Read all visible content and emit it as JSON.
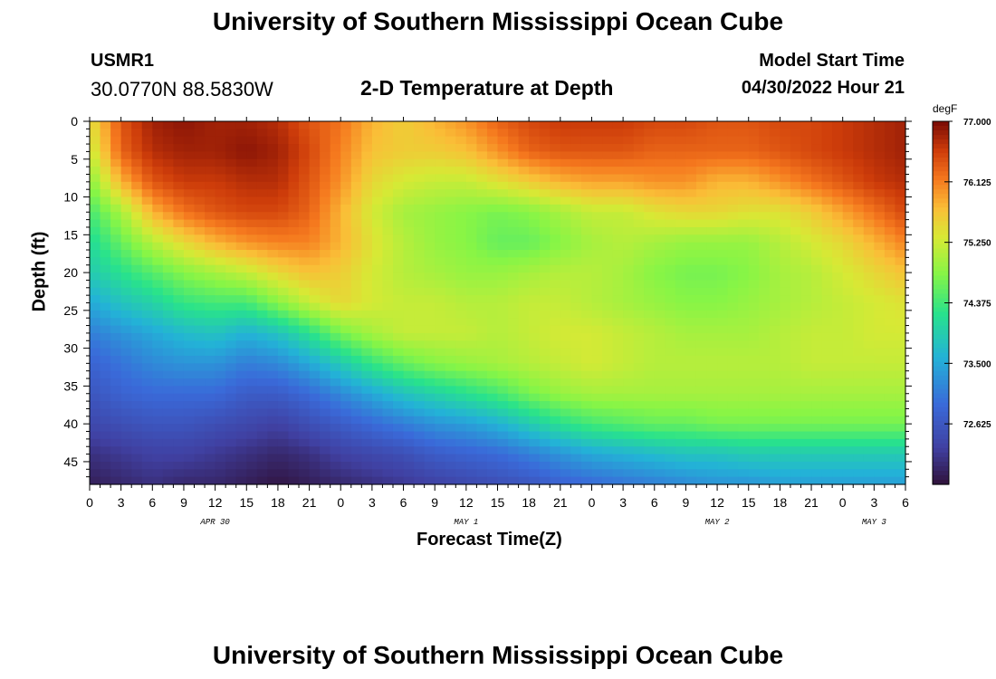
{
  "page": {
    "title": "University of Southern Mississippi Ocean Cube",
    "title_repeat": "University of Southern Mississippi Ocean Cube",
    "station_id": "USMR1",
    "station_coords": "30.0770N  88.5830W",
    "subtitle": "2-D Temperature at Depth",
    "model_start_label": "Model Start Time",
    "model_start_value": "04/30/2022 Hour 21"
  },
  "chart_data": {
    "type": "heatmap",
    "title": "2-D Temperature at Depth",
    "xlabel": "Forecast Time(Z)",
    "ylabel": "Depth (ft)",
    "colorbar_unit": "degF",
    "colorbar_ticks": [
      "77.000",
      "76.125",
      "75.250",
      "74.375",
      "73.500",
      "72.625"
    ],
    "colorbar_range": [
      71.75,
      77.0
    ],
    "x_range_hours": [
      0,
      78
    ],
    "x_tick_labels": [
      "0",
      "3",
      "6",
      "9",
      "12",
      "15",
      "18",
      "21",
      "0",
      "3",
      "6",
      "9",
      "12",
      "15",
      "18",
      "21",
      "0",
      "3",
      "6",
      "9",
      "12",
      "15",
      "18",
      "21",
      "0",
      "3",
      "6"
    ],
    "x_tick_step_hours": 3,
    "date_labels": [
      {
        "label": "APR 30",
        "hour": 12
      },
      {
        "label": "MAY 1",
        "hour": 36
      },
      {
        "label": "MAY 2",
        "hour": 60
      },
      {
        "label": "MAY 3",
        "hour": 75
      }
    ],
    "y_range_ft": [
      0,
      48
    ],
    "y_tick_labels": [
      "0",
      "5",
      "10",
      "15",
      "20",
      "25",
      "30",
      "35",
      "40",
      "45"
    ],
    "y_ticks_ft": [
      0,
      5,
      10,
      15,
      20,
      25,
      30,
      35,
      40,
      45
    ],
    "grid_hours": [
      0,
      3,
      6,
      9,
      12,
      15,
      18,
      21,
      24,
      27,
      30,
      33,
      36,
      39,
      42,
      45,
      48,
      51,
      54,
      57,
      60,
      63,
      66,
      69,
      72,
      75,
      78
    ],
    "grid_depths_ft": [
      0,
      4,
      8,
      12,
      16,
      20,
      24,
      28,
      32,
      36,
      40,
      44,
      48
    ],
    "temperature_degF": [
      [
        75.4,
        76.4,
        76.8,
        76.9,
        76.8,
        76.8,
        76.7,
        76.4,
        76.2,
        75.8,
        75.6,
        75.8,
        76.0,
        76.3,
        76.5,
        76.6,
        76.6,
        76.6,
        76.5,
        76.5,
        76.4,
        76.4,
        76.5,
        76.5,
        76.6,
        76.7,
        76.8
      ],
      [
        75.2,
        76.3,
        76.7,
        76.8,
        76.8,
        76.9,
        76.8,
        76.5,
        76.1,
        75.7,
        75.6,
        75.6,
        75.7,
        76.0,
        76.3,
        76.4,
        76.4,
        76.4,
        76.3,
        76.3,
        76.3,
        76.3,
        76.4,
        76.5,
        76.6,
        76.7,
        76.8
      ],
      [
        74.8,
        75.8,
        76.4,
        76.6,
        76.6,
        76.7,
        76.7,
        76.4,
        76.0,
        75.5,
        75.3,
        75.2,
        75.2,
        75.4,
        75.6,
        75.8,
        75.9,
        75.9,
        76.0,
        76.0,
        75.8,
        75.8,
        76.0,
        76.2,
        76.4,
        76.6,
        76.7
      ],
      [
        74.4,
        75.0,
        75.8,
        76.2,
        76.4,
        76.5,
        76.5,
        76.3,
        75.8,
        75.3,
        75.0,
        74.9,
        74.8,
        74.7,
        74.8,
        75.0,
        75.2,
        75.2,
        75.4,
        75.5,
        75.5,
        75.4,
        75.4,
        75.6,
        75.9,
        76.2,
        76.5
      ],
      [
        74.1,
        74.6,
        75.1,
        75.5,
        75.8,
        76.0,
        76.1,
        76.1,
        75.8,
        75.4,
        75.1,
        74.9,
        74.8,
        74.6,
        74.6,
        74.8,
        75.0,
        75.1,
        75.0,
        74.9,
        74.9,
        74.9,
        75.1,
        75.3,
        75.5,
        75.8,
        76.1
      ],
      [
        73.9,
        74.2,
        74.5,
        74.8,
        75.0,
        75.2,
        75.5,
        75.7,
        75.6,
        75.3,
        75.1,
        75.0,
        74.9,
        74.9,
        75.0,
        75.1,
        75.1,
        75.0,
        74.8,
        74.7,
        74.7,
        74.8,
        75.0,
        75.1,
        75.3,
        75.5,
        75.7
      ],
      [
        73.5,
        73.8,
        74.0,
        74.3,
        74.4,
        74.4,
        74.8,
        75.2,
        75.5,
        75.3,
        75.2,
        75.2,
        75.1,
        75.1,
        75.2,
        75.2,
        75.1,
        75.0,
        74.9,
        74.8,
        74.8,
        74.9,
        75.0,
        75.1,
        75.2,
        75.3,
        75.4
      ],
      [
        73.1,
        73.3,
        73.5,
        73.7,
        73.8,
        73.6,
        73.8,
        74.2,
        74.7,
        75.0,
        75.2,
        75.2,
        75.2,
        75.1,
        75.2,
        75.3,
        75.3,
        75.2,
        75.1,
        75.0,
        75.0,
        75.0,
        75.1,
        75.2,
        75.2,
        75.3,
        75.3
      ],
      [
        72.8,
        73.0,
        73.2,
        73.3,
        73.3,
        73.1,
        73.2,
        73.5,
        73.9,
        74.3,
        74.6,
        74.8,
        74.9,
        75.0,
        75.1,
        75.2,
        75.3,
        75.2,
        75.1,
        75.1,
        75.1,
        75.1,
        75.1,
        75.2,
        75.2,
        75.2,
        75.2
      ],
      [
        72.6,
        72.8,
        72.9,
        72.9,
        72.9,
        72.7,
        72.7,
        72.9,
        73.2,
        73.5,
        73.8,
        74.0,
        74.2,
        74.4,
        74.7,
        74.9,
        75.0,
        75.0,
        75.0,
        75.0,
        75.0,
        75.0,
        75.0,
        75.0,
        75.0,
        75.0,
        75.0
      ],
      [
        72.4,
        72.5,
        72.6,
        72.6,
        72.5,
        72.4,
        72.3,
        72.5,
        72.7,
        72.9,
        73.1,
        73.3,
        73.4,
        73.6,
        73.9,
        74.2,
        74.4,
        74.5,
        74.6,
        74.6,
        74.7,
        74.7,
        74.7,
        74.7,
        74.7,
        74.7,
        74.7
      ],
      [
        72.1,
        72.2,
        72.3,
        72.3,
        72.2,
        72.1,
        72.0,
        72.1,
        72.3,
        72.4,
        72.5,
        72.7,
        72.8,
        72.9,
        73.1,
        73.3,
        73.5,
        73.6,
        73.7,
        73.8,
        73.8,
        73.9,
        73.9,
        73.9,
        73.9,
        73.9,
        73.9
      ],
      [
        71.9,
        72.0,
        72.1,
        72.0,
        72.0,
        71.9,
        71.8,
        71.9,
        72.0,
        72.1,
        72.2,
        72.3,
        72.4,
        72.5,
        72.6,
        72.8,
        72.9,
        73.0,
        73.1,
        73.2,
        73.3,
        73.3,
        73.4,
        73.4,
        73.4,
        73.4,
        73.4
      ]
    ]
  }
}
